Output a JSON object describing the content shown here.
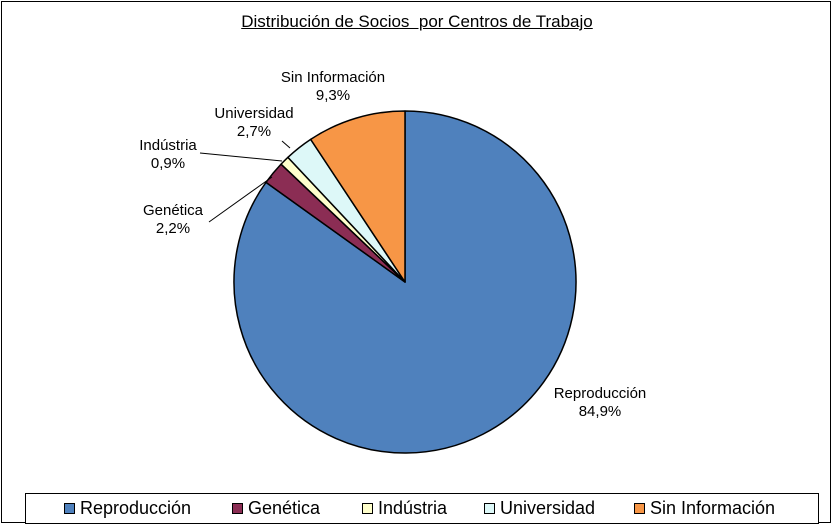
{
  "chart_data": {
    "type": "pie",
    "title": "Distribución de Socios  por Centros de Trabajo",
    "slices": [
      {
        "name": "Reproducción",
        "value": 84.9,
        "value_label": "84,9%",
        "color": "#4F81BD"
      },
      {
        "name": "Genética",
        "value": 2.2,
        "value_label": "2,2%",
        "color": "#8B2D54"
      },
      {
        "name": "Indústria",
        "value": 0.9,
        "value_label": "0,9%",
        "color": "#FFFFCC"
      },
      {
        "name": "Universidad",
        "value": 2.7,
        "value_label": "2,7%",
        "color": "#DDF8F8"
      },
      {
        "name": "Sin Información",
        "value": 9.3,
        "value_label": "9,3%",
        "color": "#F79646"
      }
    ],
    "legend_position": "bottom"
  }
}
